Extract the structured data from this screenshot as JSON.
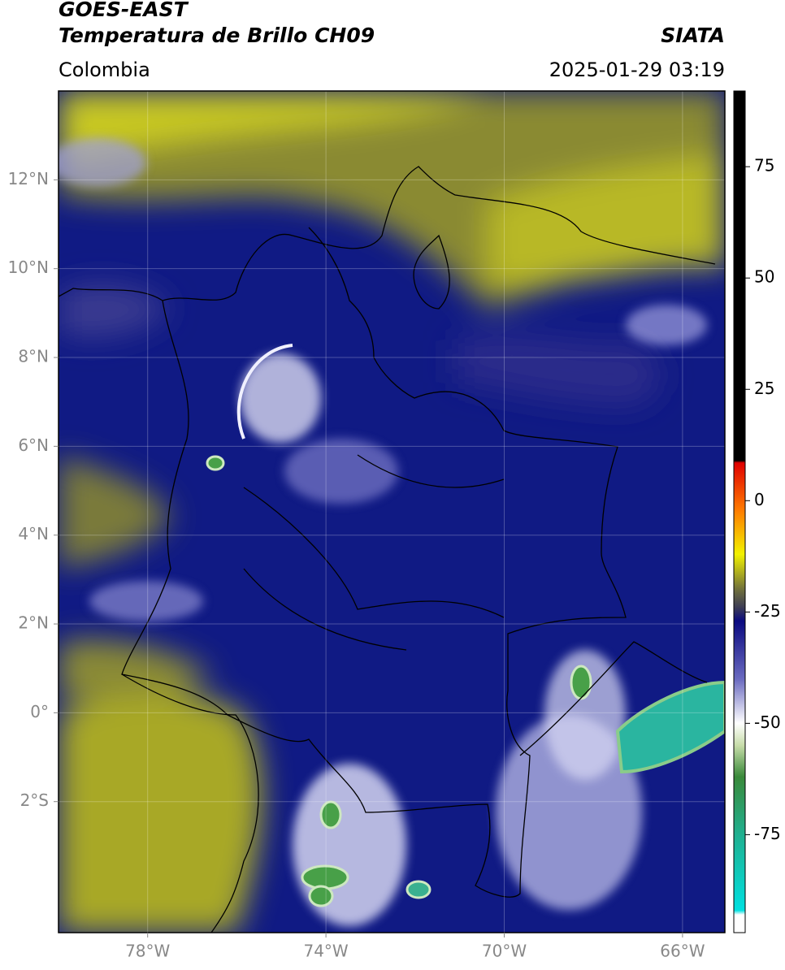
{
  "header": {
    "title": "GOES-EAST",
    "subtitle": "Temperatura de Brillo CH09",
    "source": "SIATA",
    "region": "Colombia",
    "datetime": "2025-01-29 03:19"
  },
  "map": {
    "xlim": [
      -80,
      -65.05
    ],
    "ylim": [
      -4.95,
      14
    ],
    "xticks": [
      {
        "value": -78,
        "label": "78°W"
      },
      {
        "value": -74,
        "label": "74°W"
      },
      {
        "value": -70,
        "label": "70°W"
      },
      {
        "value": -66,
        "label": "66°W"
      }
    ],
    "yticks": [
      {
        "value": 12,
        "label": "12°N"
      },
      {
        "value": 10,
        "label": "10°N"
      },
      {
        "value": 8,
        "label": "8°N"
      },
      {
        "value": 6,
        "label": "6°N"
      },
      {
        "value": 4,
        "label": "4°N"
      },
      {
        "value": 2,
        "label": "2°N"
      },
      {
        "value": 0,
        "label": "0°"
      },
      {
        "value": -2,
        "label": "2°S"
      }
    ],
    "grid": true
  },
  "colorbar": {
    "lim": [
      -97,
      92
    ],
    "ticks": [
      75,
      50,
      25,
      0,
      -25,
      -50,
      -75
    ],
    "stops": [
      {
        "value": 92,
        "color": "#000000"
      },
      {
        "value": 9,
        "color": "#000000"
      },
      {
        "value": 8.5,
        "color": "#e00000"
      },
      {
        "value": -2,
        "color": "#ff7a00"
      },
      {
        "value": -12,
        "color": "#f2f200"
      },
      {
        "value": -20,
        "color": "#6f6f3c"
      },
      {
        "value": -24,
        "color": "#3c3c55"
      },
      {
        "value": -27,
        "color": "#0a0a80"
      },
      {
        "value": -40,
        "color": "#6a6ac0"
      },
      {
        "value": -50,
        "color": "#ffffff"
      },
      {
        "value": -55,
        "color": "#c6dca8"
      },
      {
        "value": -62,
        "color": "#3a8a3a"
      },
      {
        "value": -75,
        "color": "#20b090"
      },
      {
        "value": -92,
        "color": "#00e0e0"
      },
      {
        "value": -93,
        "color": "#ffffff"
      }
    ]
  }
}
